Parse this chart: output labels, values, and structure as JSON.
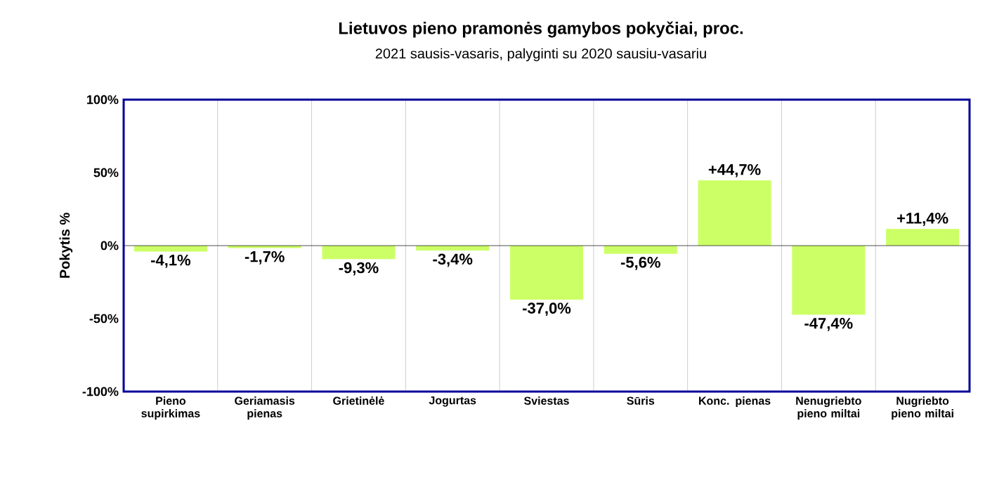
{
  "chart_data": {
    "type": "bar",
    "title": "Lietuvos pieno pramonės gamybos pokyčiai, proc.",
    "subtitle": "2021 sausis-vasaris, palyginti su 2020 sausiu-vasariu",
    "ylabel": "Pokytis %",
    "categories": [
      "Pieno supirkimas",
      "Geriamasis pienas",
      "Grietinėlė",
      "Jogurtas",
      "Sviestas",
      "Sūris",
      "Konc. pienas",
      "Nenugriebto pieno miltai",
      "Nugriebto pieno miltai"
    ],
    "values": [
      -4.1,
      -1.7,
      -9.3,
      -3.4,
      -37.0,
      -5.6,
      44.7,
      -47.4,
      11.4
    ],
    "value_labels": [
      "-4,1%",
      "-1,7%",
      "-9,3%",
      "-3,4%",
      "-37,0%",
      "-5,6%",
      "+44,7%",
      "-47,4%",
      "+11,4%"
    ],
    "color": "#ccff66",
    "ylim": [
      -100,
      100
    ],
    "yticks": [
      {
        "value": -100,
        "label": "-100%"
      },
      {
        "value": -50,
        "label": "-50%"
      },
      {
        "value": 0,
        "label": "0%"
      },
      {
        "value": 50,
        "label": "50%"
      },
      {
        "value": 100,
        "label": "100%"
      }
    ],
    "grid": "x"
  }
}
